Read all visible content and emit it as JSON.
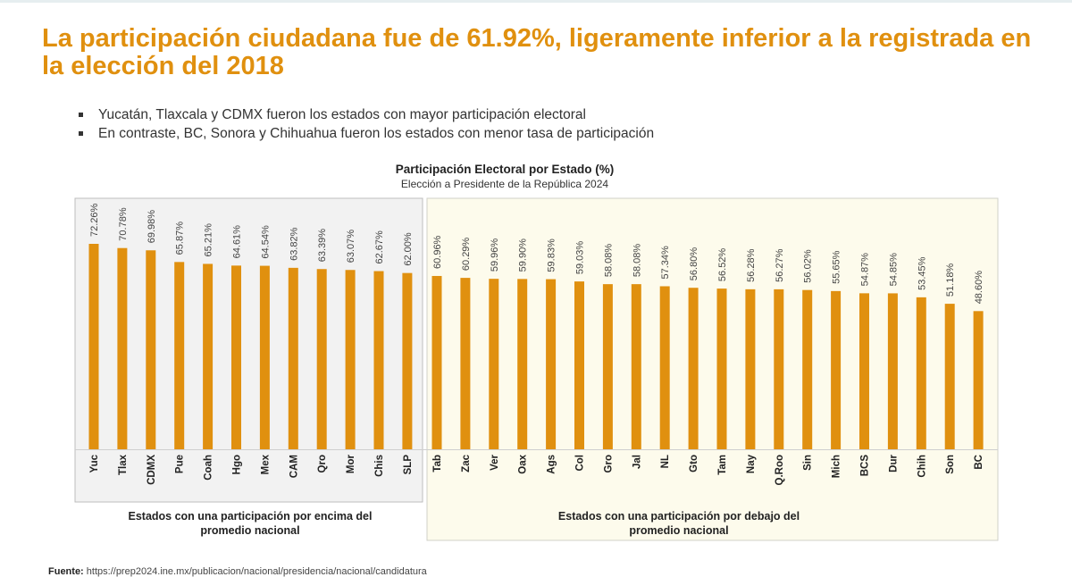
{
  "title": "La participación ciudadana fue de 61.92%, ligeramente inferior a la registrada en la elección del 2018",
  "bullets": [
    "Yucatán, Tlaxcala y CDMX fueron los estados con mayor participación electoral",
    "En contraste, BC, Sonora y Chihuahua fueron los estados con menor tasa de participación"
  ],
  "source_label": "Fuente:",
  "source_url": "https://prep2024.ine.mx/publicacion/nacional/presidencia/nacional/candidatura",
  "colors": {
    "bar": "#e0900f",
    "above_panel": "#f2f2f2",
    "below_panel": "#fdfbec",
    "title": "#e0900f"
  },
  "chart_data": {
    "type": "bar",
    "title": "Participación Electoral por Estado (%)",
    "subtitle": "Elección a Presidente de la República 2024",
    "categories": [
      "Yuc",
      "Tlax",
      "CDMX",
      "Pue",
      "Coah",
      "Hgo",
      "Mex",
      "CAM",
      "Qro",
      "Mor",
      "Chis",
      "SLP",
      "Tab",
      "Zac",
      "Ver",
      "Oax",
      "Ags",
      "Col",
      "Gro",
      "Jal",
      "NL",
      "Gto",
      "Tam",
      "Nay",
      "Q.Roo",
      "Sin",
      "Mich",
      "BCS",
      "Dur",
      "Chih",
      "Son",
      "BC"
    ],
    "values": [
      72.26,
      70.78,
      69.98,
      65.87,
      65.21,
      64.61,
      64.54,
      63.82,
      63.39,
      63.07,
      62.67,
      62.0,
      60.96,
      60.29,
      59.96,
      59.9,
      59.83,
      59.03,
      58.08,
      58.08,
      57.34,
      56.8,
      56.52,
      56.28,
      56.27,
      56.02,
      55.65,
      54.87,
      54.85,
      53.45,
      51.18,
      48.6
    ],
    "data_labels": [
      "72.26%",
      "70.78%",
      "69.98%",
      "65.87%",
      "65.21%",
      "64.61%",
      "64.54%",
      "63.82%",
      "63.39%",
      "63.07%",
      "62.67%",
      "62.00%",
      "60.96%",
      "60.29%",
      "59.96%",
      "59.90%",
      "59.83%",
      "59.03%",
      "58.08%",
      "58.08%",
      "57.34%",
      "56.80%",
      "56.52%",
      "56.28%",
      "56.27%",
      "56.02%",
      "55.65%",
      "54.87%",
      "54.85%",
      "53.45%",
      "51.18%",
      "48.60%"
    ],
    "ylim": [
      0,
      80
    ],
    "grid": false,
    "groups": [
      {
        "label": "Estados con una participación por encima del promedio nacional",
        "count": 12
      },
      {
        "label": "Estados con una participación por debajo del promedio nacional",
        "count": 20
      }
    ]
  }
}
